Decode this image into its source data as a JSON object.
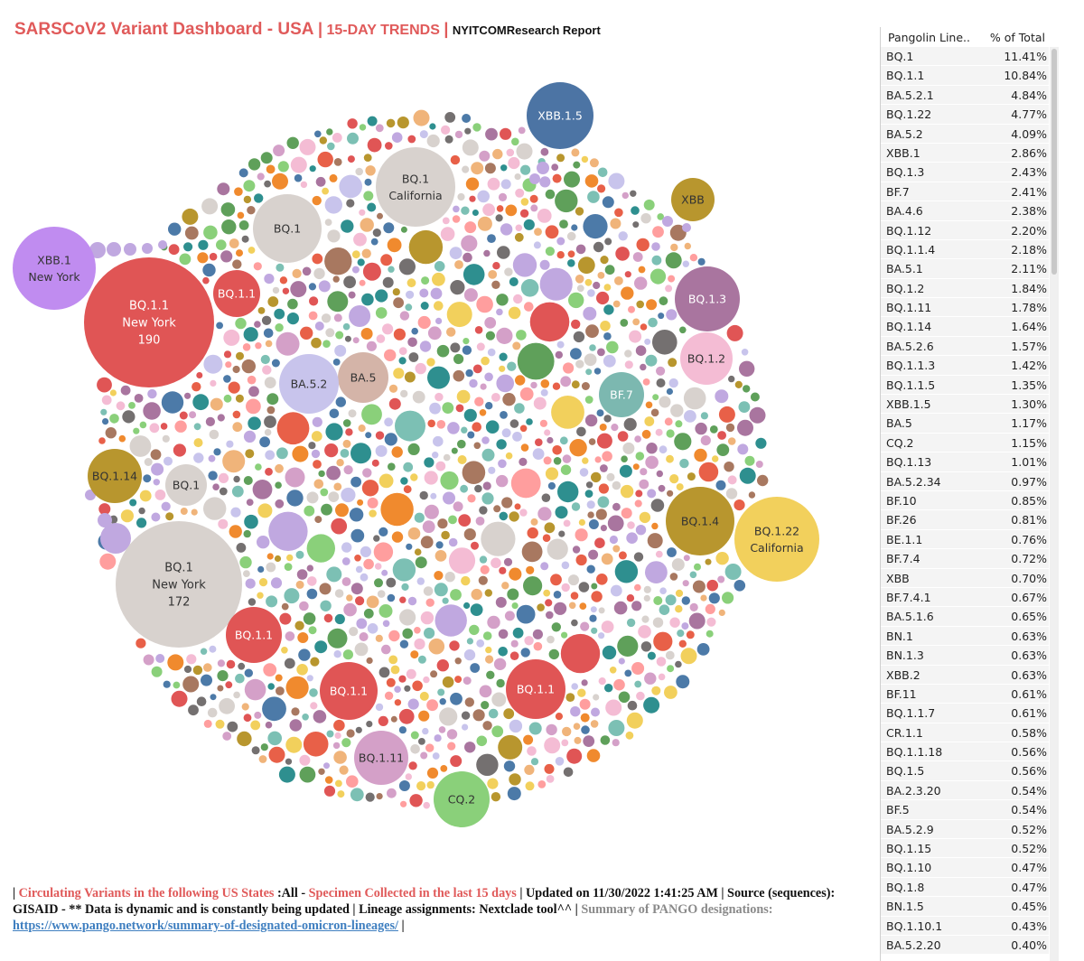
{
  "header": {
    "title": "SARSCoV2 Variant Dashboard - USA",
    "sep": "|",
    "subtitle": "15-DAY TRENDS",
    "report": "NYITCOMResearch Report"
  },
  "colors": {
    "title_red": "#e05a5a",
    "link_blue": "#3f7fc0",
    "palette": [
      "#d8d2ce",
      "#e05555",
      "#f0b47a",
      "#c8c4ec",
      "#a9759f",
      "#f2d05c",
      "#7cc0b4",
      "#f08a2e",
      "#f4bcd4",
      "#5fa05a",
      "#a87860",
      "#c0a8e0",
      "#4c7aa8",
      "#b8962e",
      "#8ad07a",
      "#747070",
      "#d4a0c8",
      "#ff9e9e",
      "#e86048",
      "#2e8f8f"
    ]
  },
  "bubbles": [
    {
      "label": "BQ.1.1",
      "state": "New York",
      "count": "190",
      "color": "#e05555",
      "text_color": "#ffffff"
    },
    {
      "label": "BQ.1",
      "state": "New York",
      "count": "172",
      "color": "#d8d2ce",
      "text_color": "#333333"
    },
    {
      "label": "BQ.1",
      "state": "California",
      "count": "",
      "color": "#d8d2ce",
      "text_color": "#333333"
    },
    {
      "label": "XBB.1",
      "state": "New York",
      "count": "",
      "color": "#c08cf0",
      "text_color": "#333333"
    },
    {
      "label": "BQ.1.22",
      "state": "California",
      "count": "",
      "color": "#f2d05c",
      "text_color": "#333333"
    },
    {
      "label": "XBB.1.5",
      "state": "",
      "count": "",
      "color": "#4c74a4",
      "text_color": "#ffffff"
    },
    {
      "label": "XBB",
      "state": "",
      "count": "",
      "color": "#b8962e",
      "text_color": "#333333"
    },
    {
      "label": "BQ.1.4",
      "state": "",
      "count": "",
      "color": "#b8962e",
      "text_color": "#333333"
    },
    {
      "label": "BQ.1.14",
      "state": "",
      "count": "",
      "color": "#b8962e",
      "text_color": "#333333"
    },
    {
      "label": "BQ.1.3",
      "state": "",
      "count": "",
      "color": "#a9759f",
      "text_color": "#ffffff"
    },
    {
      "label": "BQ.1.2",
      "state": "",
      "count": "",
      "color": "#f4bcd4",
      "text_color": "#333333"
    },
    {
      "label": "BF.7",
      "state": "",
      "count": "",
      "color": "#7cb8b0",
      "text_color": "#ffffff"
    },
    {
      "label": "BA.5",
      "state": "",
      "count": "",
      "color": "#d4b4a8",
      "text_color": "#333333"
    },
    {
      "label": "BA.5.2",
      "state": "",
      "count": "",
      "color": "#c8c4ec",
      "text_color": "#333333"
    },
    {
      "label": "BQ.1",
      "state": "",
      "count": "",
      "color": "#d8d2ce",
      "text_color": "#333333"
    },
    {
      "label": "BQ.1",
      "state": "",
      "count": "",
      "color": "#d8d2ce",
      "text_color": "#333333"
    },
    {
      "label": "BQ.1.1",
      "state": "",
      "count": "",
      "color": "#e05555",
      "text_color": "#ffffff"
    },
    {
      "label": "BQ.1.1",
      "state": "",
      "count": "",
      "color": "#e05555",
      "text_color": "#ffffff"
    },
    {
      "label": "BQ.1.1",
      "state": "",
      "count": "",
      "color": "#e05555",
      "text_color": "#ffffff"
    },
    {
      "label": "BQ.1.1",
      "state": "",
      "count": "",
      "color": "#e05555",
      "text_color": "#ffffff"
    },
    {
      "label": "BQ.1.11",
      "state": "",
      "count": "",
      "color": "#d4a0c8",
      "text_color": "#333333"
    },
    {
      "label": "CQ.2",
      "state": "",
      "count": "",
      "color": "#8ad07a",
      "text_color": "#333333"
    }
  ],
  "table": {
    "col_lineage": "Pangolin Line..",
    "col_pct": "% of Total",
    "rows": [
      {
        "lineage": "BQ.1",
        "pct": "11.41%"
      },
      {
        "lineage": "BQ.1.1",
        "pct": "10.84%"
      },
      {
        "lineage": "BA.5.2.1",
        "pct": "4.84%"
      },
      {
        "lineage": "BQ.1.22",
        "pct": "4.77%"
      },
      {
        "lineage": "BA.5.2",
        "pct": "4.09%"
      },
      {
        "lineage": "XBB.1",
        "pct": "2.86%"
      },
      {
        "lineage": "BQ.1.3",
        "pct": "2.43%"
      },
      {
        "lineage": "BF.7",
        "pct": "2.41%"
      },
      {
        "lineage": "BA.4.6",
        "pct": "2.38%"
      },
      {
        "lineage": "BQ.1.12",
        "pct": "2.20%"
      },
      {
        "lineage": "BQ.1.1.4",
        "pct": "2.18%"
      },
      {
        "lineage": "BA.5.1",
        "pct": "2.11%"
      },
      {
        "lineage": "BQ.1.2",
        "pct": "1.84%"
      },
      {
        "lineage": "BQ.1.11",
        "pct": "1.78%"
      },
      {
        "lineage": "BQ.1.14",
        "pct": "1.64%"
      },
      {
        "lineage": "BA.5.2.6",
        "pct": "1.57%"
      },
      {
        "lineage": "BQ.1.1.3",
        "pct": "1.42%"
      },
      {
        "lineage": "BQ.1.1.5",
        "pct": "1.35%"
      },
      {
        "lineage": "XBB.1.5",
        "pct": "1.30%"
      },
      {
        "lineage": "BA.5",
        "pct": "1.17%"
      },
      {
        "lineage": "CQ.2",
        "pct": "1.15%"
      },
      {
        "lineage": "BQ.1.13",
        "pct": "1.01%"
      },
      {
        "lineage": "BA.5.2.34",
        "pct": "0.97%"
      },
      {
        "lineage": "BF.10",
        "pct": "0.85%"
      },
      {
        "lineage": "BF.26",
        "pct": "0.81%"
      },
      {
        "lineage": "BE.1.1",
        "pct": "0.76%"
      },
      {
        "lineage": "BF.7.4",
        "pct": "0.72%"
      },
      {
        "lineage": "XBB",
        "pct": "0.70%"
      },
      {
        "lineage": "BF.7.4.1",
        "pct": "0.67%"
      },
      {
        "lineage": "BA.5.1.6",
        "pct": "0.65%"
      },
      {
        "lineage": "BN.1",
        "pct": "0.63%"
      },
      {
        "lineage": "BN.1.3",
        "pct": "0.63%"
      },
      {
        "lineage": "XBB.2",
        "pct": "0.63%"
      },
      {
        "lineage": "BF.11",
        "pct": "0.61%"
      },
      {
        "lineage": "BQ.1.1.7",
        "pct": "0.61%"
      },
      {
        "lineage": "CR.1.1",
        "pct": "0.58%"
      },
      {
        "lineage": "BQ.1.1.18",
        "pct": "0.56%"
      },
      {
        "lineage": "BQ.1.5",
        "pct": "0.56%"
      },
      {
        "lineage": "BA.2.3.20",
        "pct": "0.54%"
      },
      {
        "lineage": "BF.5",
        "pct": "0.54%"
      },
      {
        "lineage": "BA.5.2.9",
        "pct": "0.52%"
      },
      {
        "lineage": "BQ.1.15",
        "pct": "0.52%"
      },
      {
        "lineage": "BQ.1.10",
        "pct": "0.47%"
      },
      {
        "lineage": "BQ.1.8",
        "pct": "0.47%"
      },
      {
        "lineage": "BN.1.5",
        "pct": "0.45%"
      },
      {
        "lineage": "BQ.1.10.1",
        "pct": "0.43%"
      },
      {
        "lineage": "BA.5.2.20",
        "pct": "0.40%"
      }
    ]
  },
  "footer": {
    "p1": "| ",
    "p2": "Circulating Variants in the following US States",
    "p3": " :All - ",
    "p4": "Specimen Collected in the last 15 days",
    "p5": " | Updated on 11/30/2022 1:41:25 AM | Source (sequences): GISAID - ** Data is dynamic and is constantly being updated | Lineage assignments: Nextclade tool^^ | ",
    "p6": "Summary of PANGO designations:",
    "link": "https://www.pango.network/summary-of-designated-omicron-lineages/",
    "p7": " |"
  }
}
